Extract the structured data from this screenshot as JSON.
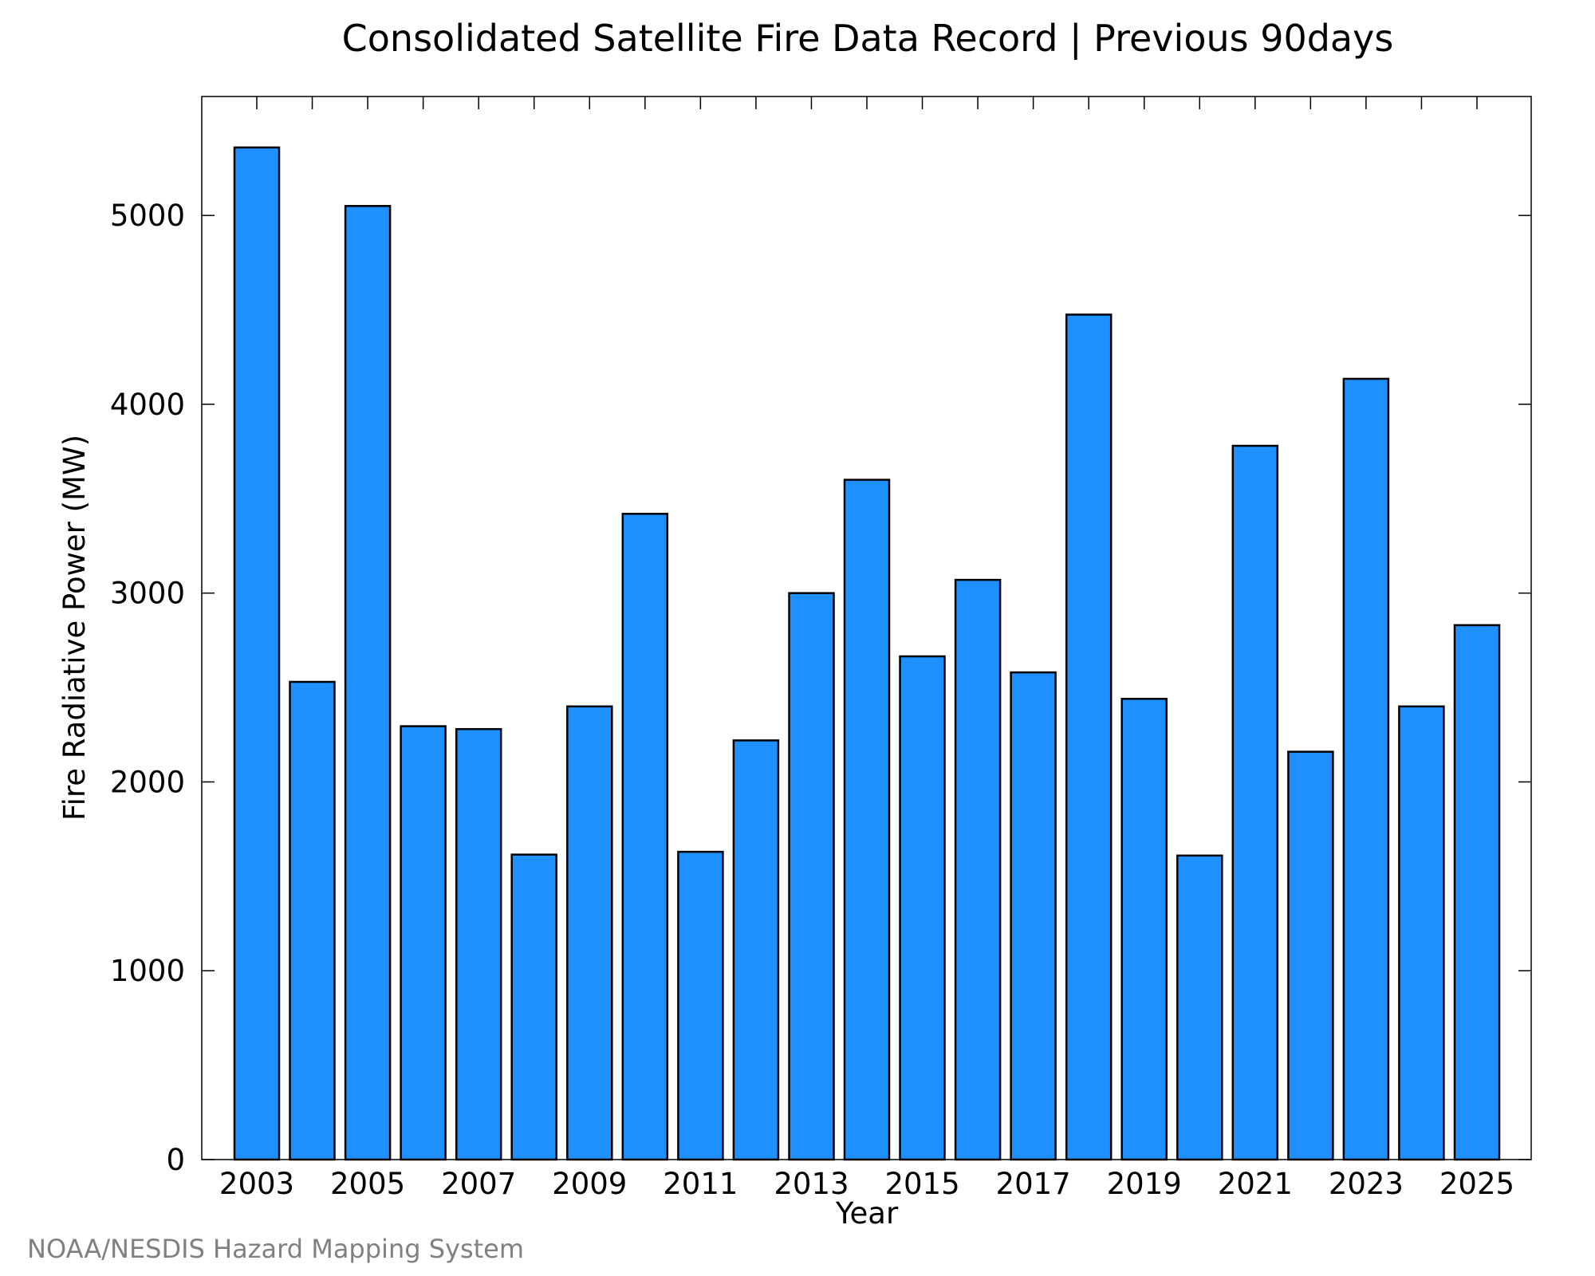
{
  "credit": "NOAA/NESDIS Hazard Mapping System",
  "colors": {
    "bar_fill": "#1e90ff",
    "bar_stroke": "#000000",
    "credit_text": "#808080"
  },
  "chart_data": {
    "type": "bar",
    "title": "Consolidated Satellite Fire Data Record | Previous 90days",
    "xlabel": "Year",
    "ylabel": "Fire Radiative Power (MW)",
    "categories": [
      "2003",
      "2004",
      "2005",
      "2006",
      "2007",
      "2008",
      "2009",
      "2010",
      "2011",
      "2012",
      "2013",
      "2014",
      "2015",
      "2016",
      "2017",
      "2018",
      "2019",
      "2020",
      "2021",
      "2022",
      "2023",
      "2024",
      "2025"
    ],
    "values": [
      5360,
      2530,
      5050,
      2295,
      2280,
      1615,
      2400,
      3420,
      1630,
      2220,
      3000,
      3600,
      2665,
      3070,
      2580,
      4475,
      2440,
      1610,
      3780,
      2160,
      4135,
      2400,
      2830
    ],
    "xticks": [
      "2003",
      "2005",
      "2007",
      "2009",
      "2011",
      "2013",
      "2015",
      "2017",
      "2019",
      "2021",
      "2023",
      "2025"
    ],
    "yticks": [
      "0",
      "1000",
      "2000",
      "3000",
      "4000",
      "5000"
    ],
    "ylim": [
      0,
      5630
    ],
    "grid": false,
    "legend": "none"
  }
}
